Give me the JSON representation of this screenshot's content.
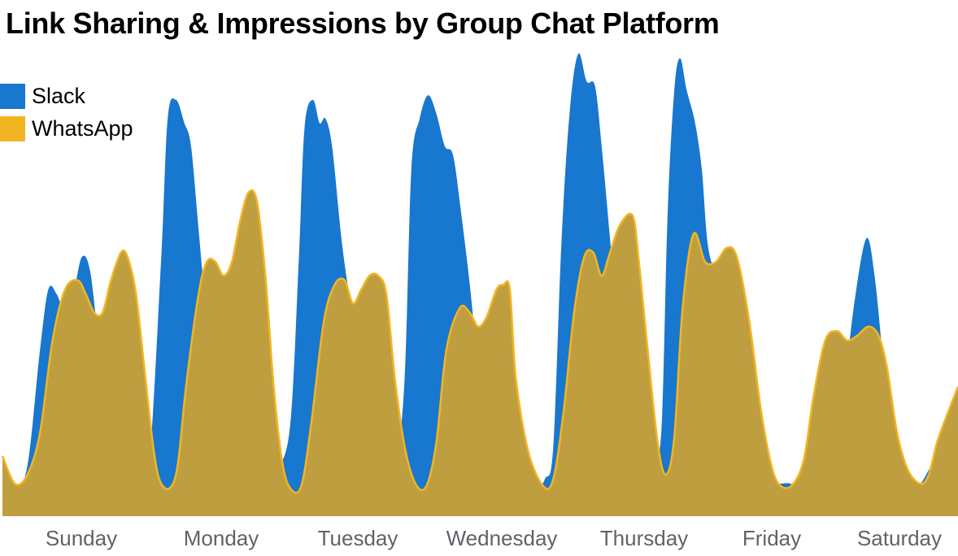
{
  "chart_data": {
    "type": "area",
    "title": "Link Sharing & Impressions by Group Chat Platform",
    "xlabel": "",
    "ylabel": "",
    "categories": [
      "Sunday",
      "Monday",
      "Tuesday",
      "Wednesday",
      "Thursday",
      "Friday",
      "Saturday"
    ],
    "ylim": [
      0,
      100
    ],
    "grid": false,
    "legend_position": "top-left",
    "series": [
      {
        "name": "Slack",
        "color": "#1877cf",
        "points": [
          [
            0.0,
            13
          ],
          [
            0.15,
            6.5
          ],
          [
            0.3,
            11
          ],
          [
            0.45,
            36
          ],
          [
            0.55,
            49
          ],
          [
            0.65,
            48
          ],
          [
            0.75,
            44
          ],
          [
            0.85,
            48
          ],
          [
            0.95,
            56
          ],
          [
            1.05,
            53
          ],
          [
            1.15,
            37
          ],
          [
            1.25,
            15
          ],
          [
            1.35,
            8
          ],
          [
            1.5,
            10
          ],
          [
            1.6,
            22
          ],
          [
            1.75,
            11
          ],
          [
            1.9,
            55
          ],
          [
            1.98,
            86
          ],
          [
            2.08,
            90
          ],
          [
            2.18,
            85
          ],
          [
            2.26,
            80
          ],
          [
            2.35,
            62
          ],
          [
            2.45,
            42
          ],
          [
            2.55,
            25
          ],
          [
            2.65,
            12
          ],
          [
            2.75,
            11
          ],
          [
            2.88,
            8
          ],
          [
            3.0,
            5
          ],
          [
            3.15,
            7
          ],
          [
            3.3,
            10
          ],
          [
            3.45,
            20
          ],
          [
            3.55,
            55
          ],
          [
            3.62,
            84
          ],
          [
            3.72,
            90
          ],
          [
            3.8,
            85
          ],
          [
            3.87,
            86
          ],
          [
            3.95,
            80
          ],
          [
            4.05,
            62
          ],
          [
            4.12,
            52
          ],
          [
            4.2,
            42
          ],
          [
            4.3,
            22
          ],
          [
            4.4,
            12
          ],
          [
            4.5,
            6
          ],
          [
            4.62,
            8
          ],
          [
            4.72,
            12
          ],
          [
            4.82,
            30
          ],
          [
            4.9,
            75
          ],
          [
            5.0,
            86
          ],
          [
            5.1,
            91
          ],
          [
            5.2,
            87
          ],
          [
            5.3,
            80
          ],
          [
            5.4,
            78
          ],
          [
            5.5,
            65
          ],
          [
            5.6,
            50
          ],
          [
            5.7,
            32
          ],
          [
            5.8,
            16
          ],
          [
            5.9,
            12
          ],
          [
            6.05,
            14
          ],
          [
            6.2,
            8
          ],
          [
            6.35,
            5
          ],
          [
            6.5,
            8
          ],
          [
            6.6,
            15
          ],
          [
            6.7,
            60
          ],
          [
            6.8,
            88
          ],
          [
            6.9,
            100
          ],
          [
            7.0,
            94
          ],
          [
            7.1,
            93
          ],
          [
            7.18,
            80
          ],
          [
            7.28,
            60
          ],
          [
            7.38,
            40
          ],
          [
            7.5,
            25
          ],
          [
            7.6,
            12
          ],
          [
            7.7,
            10
          ],
          [
            7.82,
            12
          ],
          [
            7.9,
            20
          ],
          [
            7.97,
            65
          ],
          [
            8.05,
            92
          ],
          [
            8.12,
            99
          ],
          [
            8.2,
            92
          ],
          [
            8.3,
            85
          ],
          [
            8.38,
            75
          ],
          [
            8.45,
            59
          ],
          [
            8.55,
            52
          ],
          [
            8.65,
            48
          ],
          [
            8.75,
            40
          ],
          [
            8.85,
            30
          ],
          [
            8.95,
            16
          ],
          [
            9.05,
            8
          ],
          [
            9.15,
            7
          ],
          [
            9.3,
            7
          ],
          [
            9.45,
            7
          ],
          [
            9.6,
            5
          ],
          [
            9.75,
            6
          ],
          [
            9.9,
            9
          ],
          [
            10.05,
            22
          ],
          [
            10.2,
            45
          ],
          [
            10.35,
            60
          ],
          [
            10.45,
            52
          ],
          [
            10.55,
            34
          ],
          [
            10.65,
            15
          ],
          [
            10.75,
            8
          ],
          [
            10.9,
            6.5
          ],
          [
            11.0,
            7
          ],
          [
            11.1,
            10
          ],
          [
            11.2,
            13
          ],
          [
            11.3,
            13.5
          ],
          [
            11.45,
            7
          ]
        ]
      },
      {
        "name": "WhatsApp",
        "color": "#f2b522",
        "points": [
          [
            0.0,
            13
          ],
          [
            0.15,
            7
          ],
          [
            0.3,
            9
          ],
          [
            0.45,
            18
          ],
          [
            0.6,
            38
          ],
          [
            0.75,
            49
          ],
          [
            0.9,
            51
          ],
          [
            1.0,
            48
          ],
          [
            1.1,
            44
          ],
          [
            1.2,
            44
          ],
          [
            1.3,
            51
          ],
          [
            1.42,
            57
          ],
          [
            1.5,
            56
          ],
          [
            1.6,
            48
          ],
          [
            1.7,
            32
          ],
          [
            1.8,
            16
          ],
          [
            1.88,
            8
          ],
          [
            2.0,
            6
          ],
          [
            2.1,
            11
          ],
          [
            2.2,
            28
          ],
          [
            2.35,
            48
          ],
          [
            2.45,
            55
          ],
          [
            2.55,
            55
          ],
          [
            2.65,
            52
          ],
          [
            2.75,
            55
          ],
          [
            2.85,
            64
          ],
          [
            2.95,
            70
          ],
          [
            3.05,
            68
          ],
          [
            3.15,
            52
          ],
          [
            3.25,
            28
          ],
          [
            3.35,
            12
          ],
          [
            3.45,
            6
          ],
          [
            3.58,
            6.5
          ],
          [
            3.7,
            20
          ],
          [
            3.85,
            42
          ],
          [
            3.98,
            50
          ],
          [
            4.1,
            51
          ],
          [
            4.2,
            46
          ],
          [
            4.3,
            49
          ],
          [
            4.4,
            52
          ],
          [
            4.5,
            52
          ],
          [
            4.6,
            48
          ],
          [
            4.7,
            30
          ],
          [
            4.82,
            15
          ],
          [
            4.95,
            7
          ],
          [
            5.08,
            6.5
          ],
          [
            5.2,
            16
          ],
          [
            5.32,
            36
          ],
          [
            5.48,
            45
          ],
          [
            5.6,
            44
          ],
          [
            5.7,
            41
          ],
          [
            5.8,
            43
          ],
          [
            5.92,
            49
          ],
          [
            6.0,
            50
          ],
          [
            6.08,
            49
          ],
          [
            6.15,
            30
          ],
          [
            6.3,
            14
          ],
          [
            6.48,
            6.5
          ],
          [
            6.6,
            8
          ],
          [
            6.72,
            22
          ],
          [
            6.85,
            44
          ],
          [
            6.97,
            56
          ],
          [
            7.08,
            57
          ],
          [
            7.18,
            52
          ],
          [
            7.28,
            57
          ],
          [
            7.4,
            63
          ],
          [
            7.55,
            65
          ],
          [
            7.62,
            56
          ],
          [
            7.72,
            38
          ],
          [
            7.85,
            16
          ],
          [
            7.95,
            9
          ],
          [
            8.05,
            17
          ],
          [
            8.15,
            45
          ],
          [
            8.28,
            61
          ],
          [
            8.42,
            55
          ],
          [
            8.55,
            55
          ],
          [
            8.68,
            58
          ],
          [
            8.8,
            56
          ],
          [
            8.95,
            42
          ],
          [
            9.08,
            24
          ],
          [
            9.2,
            12
          ],
          [
            9.3,
            7
          ],
          [
            9.45,
            6.5
          ],
          [
            9.6,
            12
          ],
          [
            9.72,
            26
          ],
          [
            9.86,
            38
          ],
          [
            10.0,
            40
          ],
          [
            10.12,
            38
          ],
          [
            10.24,
            39
          ],
          [
            10.38,
            41
          ],
          [
            10.5,
            39
          ],
          [
            10.6,
            32
          ],
          [
            10.72,
            18
          ],
          [
            10.85,
            10
          ],
          [
            11.0,
            7
          ],
          [
            11.1,
            9
          ],
          [
            11.2,
            16
          ],
          [
            11.3,
            21
          ],
          [
            11.45,
            28
          ]
        ]
      }
    ]
  }
}
